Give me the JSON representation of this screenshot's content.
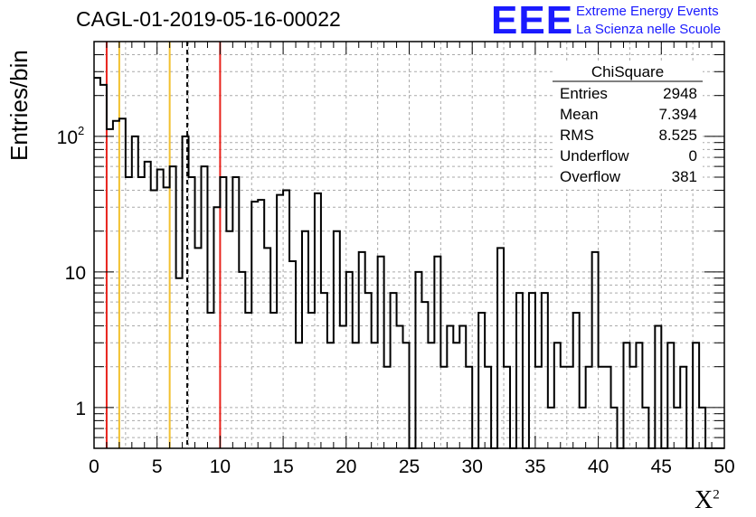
{
  "chart_data": {
    "type": "histogram",
    "title": "CAGL-01-2019-05-16-00022",
    "xlabel": "X",
    "xlabel_superscript": "2",
    "ylabel": "Entries/bin",
    "x_range": [
      0,
      50
    ],
    "y_range": [
      0.5,
      500
    ],
    "y_scale": "log",
    "grid": true,
    "bin_width": 0.5,
    "x_ticks": [
      "0",
      "5",
      "10",
      "15",
      "20",
      "25",
      "30",
      "35",
      "40",
      "45",
      "50"
    ],
    "y_ticks": [
      {
        "value": 1,
        "label": "1"
      },
      {
        "value": 10,
        "label": "10"
      },
      {
        "value": 100,
        "label": "10",
        "exponent": "2"
      }
    ],
    "bin_values": [
      270,
      240,
      113,
      130,
      135,
      50,
      100,
      50,
      65,
      40,
      57,
      42,
      60,
      9,
      100,
      50,
      15,
      60,
      5,
      30,
      50,
      20,
      50,
      10,
      5,
      33,
      34,
      15,
      5,
      37,
      40,
      12,
      3,
      20,
      5,
      38,
      7,
      3,
      20,
      4,
      10,
      3,
      14,
      7,
      3,
      13,
      2,
      7,
      4,
      3,
      0,
      10,
      6,
      3,
      13,
      2,
      4,
      3,
      4,
      2,
      0,
      5,
      2,
      0,
      15,
      2,
      0,
      7,
      0,
      7,
      2,
      7,
      1,
      3,
      2,
      2,
      5,
      1,
      2,
      14,
      2,
      2,
      1,
      0,
      3,
      2,
      3,
      1,
      0,
      4,
      0,
      3,
      1,
      2,
      0,
      3,
      1,
      0,
      0,
      0
    ],
    "vertical_lines": [
      {
        "x": 1,
        "color": "#e8231c",
        "style": "solid"
      },
      {
        "x": 2,
        "color": "#f2c02e",
        "style": "solid"
      },
      {
        "x": 6,
        "color": "#f2c02e",
        "style": "solid"
      },
      {
        "x": 7.394,
        "color": "#000000",
        "style": "dashed"
      },
      {
        "x": 10,
        "color": "#e8231c",
        "style": "solid"
      }
    ],
    "stats_box": {
      "name": "ChiSquare",
      "rows": [
        {
          "label": "Entries",
          "value": "2948"
        },
        {
          "label": "Mean",
          "value": "7.394"
        },
        {
          "label": "RMS",
          "value": "8.525"
        },
        {
          "label": "Underflow",
          "value": "0"
        },
        {
          "label": "Overflow",
          "value": "381"
        }
      ]
    }
  },
  "logo": {
    "text": "EEE",
    "line1": "Extreme Energy Events",
    "line2": "La Scienza nelle Scuole",
    "color": "#1a1aff"
  }
}
